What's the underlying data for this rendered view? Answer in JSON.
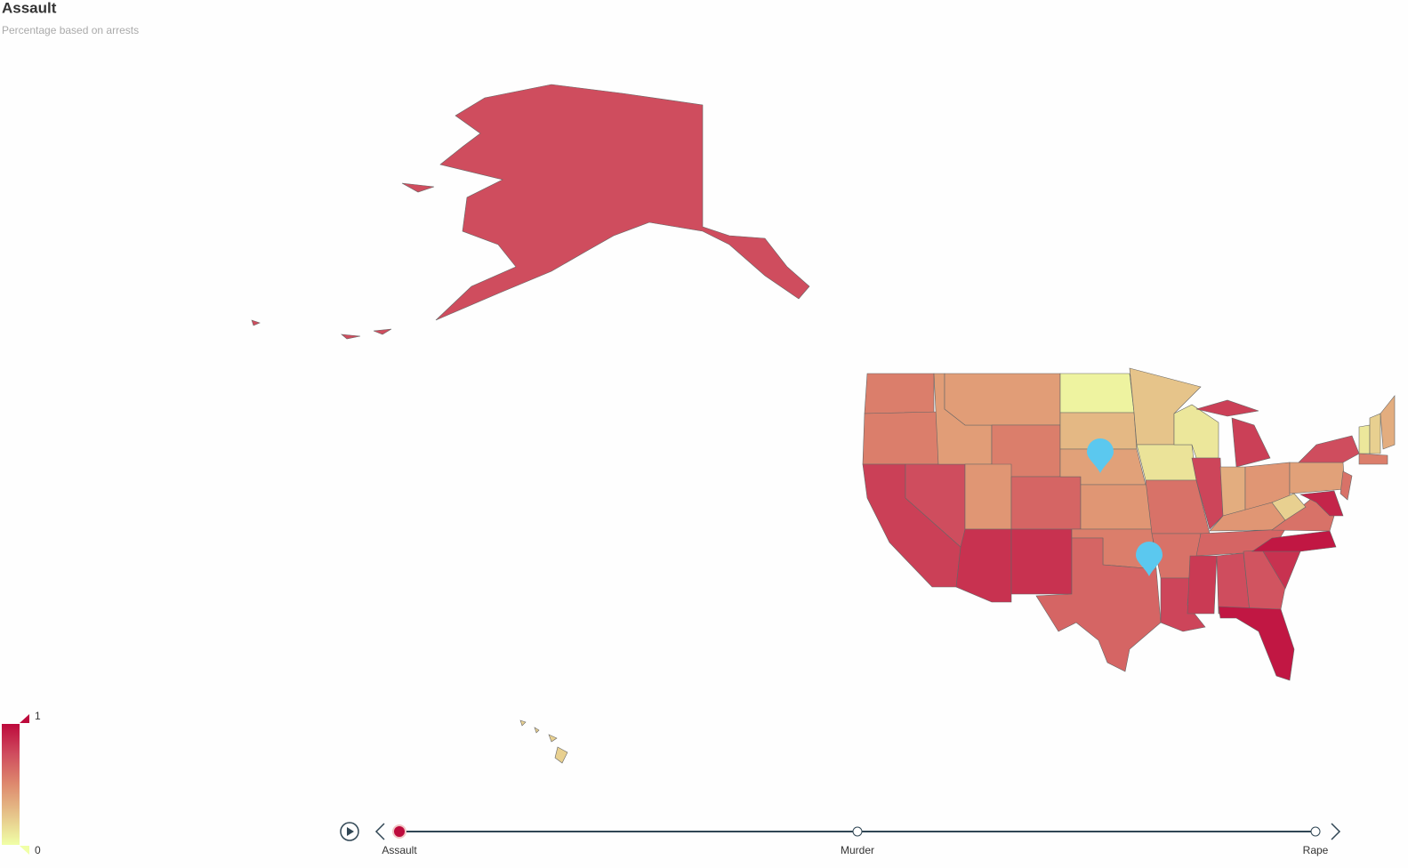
{
  "chart_data": {
    "type": "choropleth",
    "title": "Assault",
    "subtitle": "Percentage based on arrests",
    "values": [
      0.75,
      0.2,
      0.55,
      0.55,
      0.8,
      0.75,
      0.42,
      0.42,
      0.55,
      0.45,
      0.65,
      0.85,
      0.85,
      0.05,
      0.3,
      0.4,
      0.45,
      0.55,
      0.65,
      0.25,
      0.12,
      0.6,
      0.6,
      0.78,
      0.1,
      0.78,
      0.8,
      0.35,
      0.45,
      0.45,
      0.65,
      0.82,
      0.75,
      0.72,
      0.95,
      0.85,
      0.95,
      0.6,
      0.2,
      0.4,
      0.75,
      0.9,
      0.6,
      0.1,
      0.2,
      0.35,
      0.55
    ],
    "visual_range": [
      0,
      1
    ],
    "colors": [
      "#f0ffa6",
      "#e6c48a",
      "#de8a6e",
      "#cf4d5e",
      "#bd0a3c"
    ],
    "timeline": [
      "Assault",
      "Murder",
      "Rape"
    ],
    "current": 0
  }
}
